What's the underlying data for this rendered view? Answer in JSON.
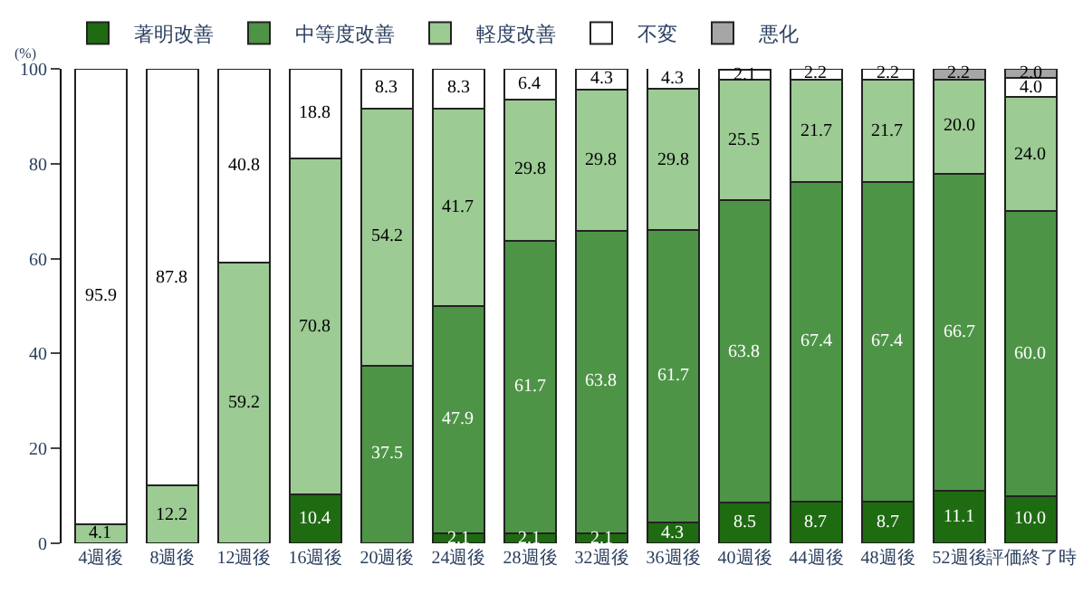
{
  "chart_data": {
    "type": "bar",
    "stacked": true,
    "ylabel": "(%)",
    "categories": [
      "4週後",
      "8週後",
      "12週後",
      "16週後",
      "20週後",
      "24週後",
      "28週後",
      "32週後",
      "36週後",
      "40週後",
      "44週後",
      "48週後",
      "52週後",
      "評価終了時"
    ],
    "series": [
      {
        "name": "著明改善",
        "color": "#1f6b12",
        "values": [
          null,
          null,
          null,
          10.4,
          null,
          2.1,
          2.1,
          2.1,
          4.3,
          8.5,
          8.7,
          8.7,
          11.1,
          10.0
        ],
        "value_labels": [
          null,
          null,
          null,
          "10.4",
          null,
          "2.1",
          "2.1",
          "2.1",
          "4.3",
          "8.5",
          "8.7",
          "8.7",
          "11.1",
          "10.0"
        ]
      },
      {
        "name": "中等度改善",
        "color": "#4e9447",
        "values": [
          null,
          null,
          null,
          null,
          37.5,
          47.9,
          61.7,
          63.8,
          61.7,
          63.8,
          67.4,
          67.4,
          66.7,
          60.0
        ],
        "value_labels": [
          null,
          null,
          null,
          null,
          "37.5",
          "47.9",
          "61.7",
          "63.8",
          "61.7",
          "63.8",
          "67.4",
          "67.4",
          "66.7",
          "60.0"
        ]
      },
      {
        "name": "軽度改善",
        "color": "#9ccb94",
        "values": [
          4.1,
          12.2,
          59.2,
          70.8,
          54.2,
          41.7,
          29.8,
          29.8,
          29.8,
          25.5,
          21.7,
          21.7,
          20.0,
          24.0
        ],
        "value_labels": [
          "4.1",
          "12.2",
          "59.2",
          "70.8",
          "54.2",
          "41.7",
          "29.8",
          "29.8",
          "29.8",
          "25.5",
          "21.7",
          "21.7",
          "20.0",
          "24.0"
        ]
      },
      {
        "name": "不変",
        "color": "#ffffff",
        "values": [
          95.9,
          87.8,
          40.8,
          18.8,
          8.3,
          8.3,
          6.4,
          4.3,
          4.3,
          2.1,
          2.2,
          2.2,
          null,
          4.0
        ],
        "value_labels": [
          "95.9",
          "87.8",
          "40.8",
          "18.8",
          "8.3",
          "8.3",
          "6.4",
          "4.3",
          "4.3",
          "2.1",
          "2.2",
          "2.2",
          null,
          "4.0"
        ]
      },
      {
        "name": "悪化",
        "color": "#a6a6a6",
        "values": [
          null,
          null,
          null,
          null,
          null,
          null,
          null,
          null,
          null,
          null,
          null,
          null,
          2.2,
          2.0
        ],
        "value_labels": [
          null,
          null,
          null,
          null,
          null,
          null,
          null,
          null,
          null,
          null,
          null,
          null,
          "2.2",
          "2.0"
        ]
      }
    ],
    "ylim": [
      0,
      100
    ],
    "yticks": [
      0,
      20,
      40,
      60,
      80,
      100
    ],
    "legend": "top left"
  }
}
